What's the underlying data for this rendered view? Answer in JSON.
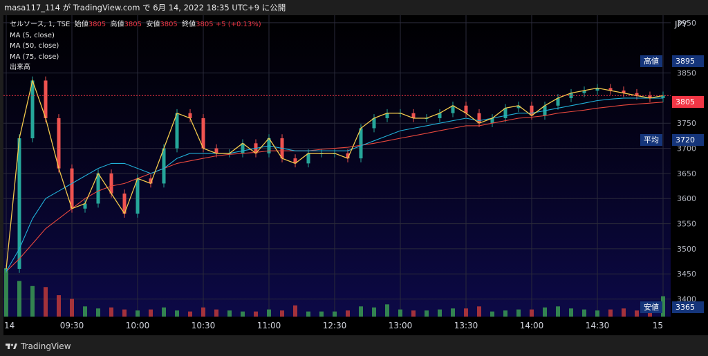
{
  "header": {
    "text": "masa117_114 が TradingView.com で 6月 14, 2022 18:35 UTC+9 に公開"
  },
  "legend": {
    "symbol": "セルソース, 1, TSE",
    "open_label": "始値",
    "open_value": "3805",
    "high_label": "高値",
    "high_value": "3805",
    "low_label": "安値",
    "low_value": "3805",
    "close_label": "終値",
    "close_value": "3805",
    "change": "+5 (+0.13%)",
    "ma5": "MA (5, close)",
    "ma50": "MA (50, close)",
    "ma75": "MA (75, close)",
    "volume": "出来高"
  },
  "price_axis": {
    "currency": "JPY",
    "ticks": [
      "3950",
      "3850",
      "3750",
      "3700",
      "3650",
      "3600",
      "3550",
      "3500",
      "3450",
      "3400"
    ]
  },
  "markers": {
    "high_label": "高値",
    "high_value": "3895",
    "last_value": "3805",
    "avg_label": "平均",
    "avg_value": "3720",
    "low_label": "安値",
    "low_value": "3365"
  },
  "time_axis": {
    "labels": [
      "14",
      "09:30",
      "10:00",
      "10:30",
      "11:00",
      "12:30",
      "13:00",
      "13:30",
      "14:00",
      "14:30",
      "15"
    ]
  },
  "footer": {
    "brand": "TradingView"
  },
  "colors": {
    "up": "#26a69a",
    "down": "#ef5350",
    "ma5": "#f2c94c",
    "ma50": "#21b0d8",
    "ma75": "#e8483d",
    "vol_up": "#3b9a52",
    "vol_down": "#c03a3a",
    "tag_bg": "#15357a",
    "last_bg": "#f23645"
  },
  "chart_data": {
    "type": "candlestick",
    "title": "セルソース, 1, TSE",
    "ylabel": "JPY",
    "ylim": [
      3365,
      3965
    ],
    "x": [
      "09:00",
      "09:06",
      "09:12",
      "09:18",
      "09:24",
      "09:30",
      "09:36",
      "09:42",
      "09:48",
      "09:54",
      "10:00",
      "10:06",
      "10:12",
      "10:18",
      "10:24",
      "10:30",
      "10:36",
      "10:42",
      "10:48",
      "10:54",
      "11:00",
      "11:06",
      "11:12",
      "11:18",
      "11:24",
      "12:30",
      "12:36",
      "12:42",
      "12:48",
      "12:54",
      "13:00",
      "13:06",
      "13:12",
      "13:18",
      "13:24",
      "13:30",
      "13:36",
      "13:42",
      "13:48",
      "13:54",
      "14:00",
      "14:06",
      "14:12",
      "14:18",
      "14:24",
      "14:30",
      "14:36",
      "14:42",
      "14:48",
      "14:54",
      "15:00"
    ],
    "close": [
      3460,
      3720,
      3835,
      3760,
      3660,
      3580,
      3590,
      3650,
      3610,
      3570,
      3640,
      3630,
      3700,
      3770,
      3760,
      3700,
      3690,
      3690,
      3710,
      3690,
      3720,
      3680,
      3670,
      3690,
      3690,
      3690,
      3680,
      3740,
      3760,
      3770,
      3770,
      3760,
      3760,
      3770,
      3785,
      3770,
      3750,
      3760,
      3780,
      3785,
      3765,
      3785,
      3800,
      3810,
      3815,
      3820,
      3815,
      3810,
      3805,
      3800,
      3805
    ],
    "series": [
      {
        "name": "MA (5, close)",
        "values": [
          3460,
          3720,
          3835,
          3760,
          3660,
          3580,
          3590,
          3650,
          3610,
          3570,
          3640,
          3630,
          3700,
          3770,
          3760,
          3700,
          3690,
          3690,
          3710,
          3690,
          3720,
          3680,
          3670,
          3690,
          3690,
          3690,
          3680,
          3740,
          3760,
          3770,
          3770,
          3760,
          3760,
          3770,
          3785,
          3770,
          3750,
          3760,
          3780,
          3785,
          3765,
          3785,
          3800,
          3810,
          3815,
          3820,
          3815,
          3810,
          3805,
          3800,
          3805
        ]
      },
      {
        "name": "MA (50, close)",
        "values": [
          3455,
          3500,
          3560,
          3600,
          3615,
          3630,
          3645,
          3660,
          3670,
          3670,
          3660,
          3650,
          3660,
          3680,
          3690,
          3690,
          3690,
          3690,
          3695,
          3700,
          3705,
          3700,
          3695,
          3695,
          3695,
          3695,
          3695,
          3705,
          3715,
          3725,
          3735,
          3740,
          3745,
          3750,
          3755,
          3760,
          3755,
          3760,
          3765,
          3770,
          3770,
          3775,
          3780,
          3785,
          3790,
          3795,
          3798,
          3800,
          3800,
          3800,
          3800
        ]
      },
      {
        "name": "MA (75, close)",
        "values": [
          3455,
          3480,
          3510,
          3540,
          3560,
          3580,
          3600,
          3615,
          3625,
          3630,
          3640,
          3650,
          3660,
          3670,
          3675,
          3680,
          3685,
          3688,
          3690,
          3692,
          3695,
          3695,
          3695,
          3695,
          3698,
          3700,
          3702,
          3706,
          3710,
          3715,
          3720,
          3725,
          3730,
          3735,
          3740,
          3745,
          3745,
          3750,
          3755,
          3760,
          3762,
          3765,
          3770,
          3773,
          3776,
          3780,
          3783,
          3786,
          3788,
          3790,
          3792
        ]
      }
    ],
    "volume": [
      95,
      70,
      60,
      58,
      42,
      35,
      20,
      16,
      18,
      14,
      12,
      14,
      18,
      12,
      10,
      18,
      14,
      12,
      10,
      10,
      14,
      12,
      22,
      10,
      10,
      10,
      12,
      20,
      18,
      24,
      14,
      12,
      12,
      14,
      16,
      16,
      20,
      10,
      12,
      14,
      14,
      18,
      20,
      16,
      14,
      12,
      14,
      16,
      12,
      14,
      40
    ]
  }
}
